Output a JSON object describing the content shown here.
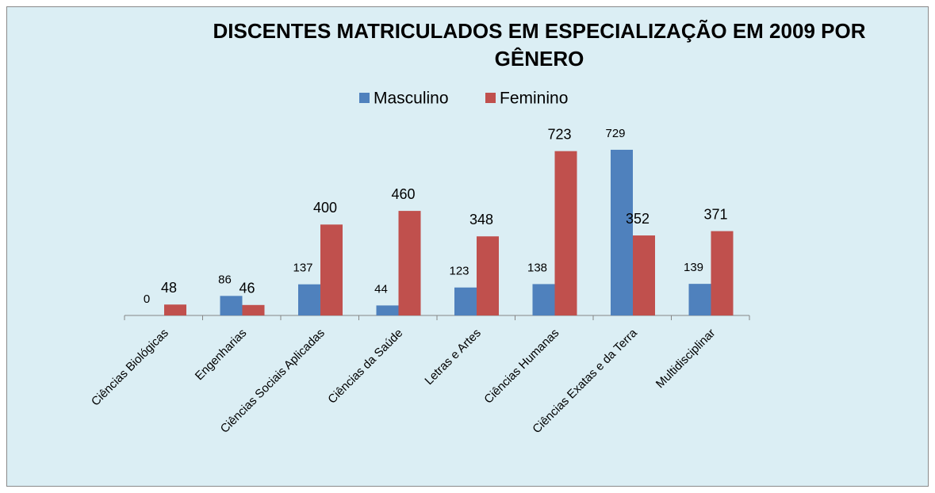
{
  "chart_data": {
    "type": "bar",
    "title": "DISCENTES MATRICULADOS EM ESPECIALIZAÇÃO EM 2009 POR GÊNERO",
    "categories": [
      "Ciências Biológicas",
      "Engenharias",
      "Ciências Sociais Aplicadas",
      "Ciências da Saúde",
      "Letras e Artes",
      "Ciências Humanas",
      "Ciências Exatas e da Terra",
      "Multidisciplinar"
    ],
    "series": [
      {
        "name": "Masculino",
        "color": "#4f81bd",
        "values": [
          0,
          86,
          137,
          44,
          123,
          138,
          729,
          139
        ]
      },
      {
        "name": "Feminino",
        "color": "#c0504d",
        "values": [
          48,
          46,
          400,
          460,
          348,
          723,
          352,
          371
        ]
      }
    ],
    "ylim": [
      0,
      800
    ],
    "legend": "top"
  }
}
